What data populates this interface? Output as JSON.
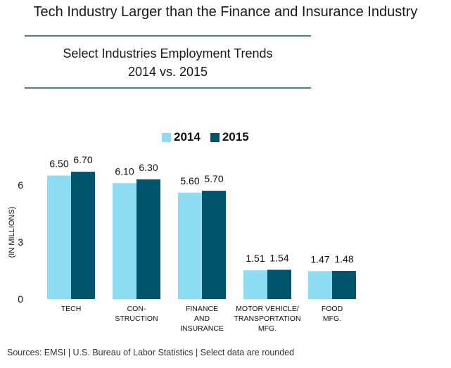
{
  "header": {
    "title": "Tech Industry Larger than the Finance and Insurance Industry",
    "subtitle_line1": "Select Industries Employment Trends",
    "subtitle_line2": "2014 vs. 2015"
  },
  "footer": {
    "source": "Sources: EMSI | U.S. Bureau of Labor Statistics | Select data are rounded"
  },
  "colors": {
    "series_2014": "#8ddcf2",
    "series_2015": "#00546b",
    "rule": "#4f7f86"
  },
  "chart_data": {
    "type": "bar",
    "title": "Select Industries Employment Trends 2014 vs. 2015",
    "ylabel": "(IN MILLIONS)",
    "ylim": [
      0,
      7
    ],
    "yticks": [
      "0",
      "3",
      "6"
    ],
    "grid": false,
    "legend_position": "top",
    "categories": [
      [
        "TECH"
      ],
      [
        "CON-",
        "STRUCTION"
      ],
      [
        "FINANCE",
        "AND",
        "INSURANCE"
      ],
      [
        "MOTOR VEHICLE/",
        "TRANSPORTATION",
        "MFG."
      ],
      [
        "FOOD",
        "MFG."
      ]
    ],
    "series": [
      {
        "name": "2014",
        "values": [
          6.5,
          6.1,
          5.6,
          1.51,
          1.47
        ],
        "labels": [
          "6.50",
          "6.10",
          "5.60",
          "1.51",
          "1.47"
        ]
      },
      {
        "name": "2015",
        "values": [
          6.7,
          6.3,
          5.7,
          1.54,
          1.48
        ],
        "labels": [
          "6.70",
          "6.30",
          "5.70",
          "1.54",
          "1.48"
        ]
      }
    ]
  }
}
